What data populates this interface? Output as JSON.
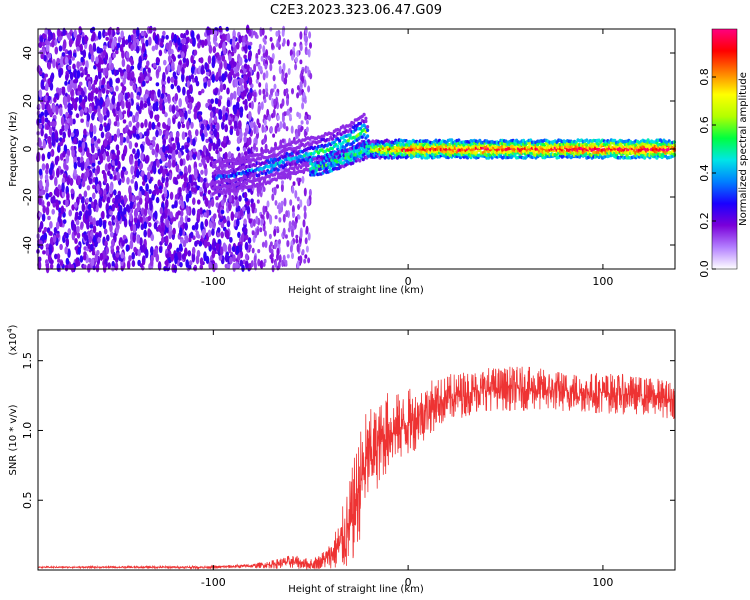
{
  "title": "C2E3.2023.323.06.47.G09",
  "chart_data": [
    {
      "type": "heatmap",
      "xlabel": "Height of straight line (km)",
      "ylabel": "Frequency (Hz)",
      "xlim": [
        -190,
        137
      ],
      "ylim": [
        -50,
        50
      ],
      "xticks": [
        -100,
        0,
        100
      ],
      "xtick_labels": [
        "-100",
        "0",
        "100"
      ],
      "yticks": [
        -40,
        -20,
        0,
        20,
        40
      ],
      "ytick_labels": [
        "-40",
        "-20",
        "0",
        "20",
        "40"
      ],
      "colorbar": {
        "label": "Normalized spectral amplitude",
        "range": [
          0,
          1
        ],
        "ticks": [
          0.0,
          0.2,
          0.4,
          0.6,
          0.8
        ],
        "tick_labels": [
          "0.0",
          "0.2",
          "0.4",
          "0.6",
          "0.8"
        ],
        "colors": [
          "#ffffff",
          "#b37fff",
          "#7a00d9",
          "#1a00ff",
          "#0080ff",
          "#00e6e6",
          "#00ff40",
          "#b3ff00",
          "#ffff00",
          "#ff8000",
          "#ff0000",
          "#ff0080"
        ]
      },
      "features": {
        "noise_region_x": [
          -190,
          -80
        ],
        "sparse_noise_x": [
          -80,
          -50
        ],
        "signal_path": [
          {
            "x": -100,
            "f": -12,
            "amp": 0.25
          },
          {
            "x": -90,
            "f": -11,
            "amp": 0.3
          },
          {
            "x": -80,
            "f": -9,
            "amp": 0.35
          },
          {
            "x": -70,
            "f": -7,
            "amp": 0.45
          },
          {
            "x": -60,
            "f": -4,
            "amp": 0.4
          },
          {
            "x": -50,
            "f": -2,
            "amp": 0.5
          },
          {
            "x": -40,
            "f": 0,
            "amp": 0.5
          },
          {
            "x": -30,
            "f": 4,
            "amp": 0.55
          },
          {
            "x": -22,
            "f": 8,
            "amp": 0.55
          },
          {
            "x": -20,
            "f": 0,
            "amp": 0.7
          },
          {
            "x": 0,
            "f": 0,
            "amp": 0.9
          },
          {
            "x": 137,
            "f": 0,
            "amp": 0.95
          }
        ],
        "secondary_path": [
          {
            "x": -50,
            "f": -8
          },
          {
            "x": -40,
            "f": -6
          },
          {
            "x": -30,
            "f": -3
          },
          {
            "x": -20,
            "f": 0
          }
        ]
      }
    },
    {
      "type": "line",
      "xlabel": "Height of straight line (km)",
      "ylabel": "SNR (10 * v/v)",
      "yscale_label": "(x10",
      "yscale_exp": "4",
      "yscale_close": ")",
      "xlim": [
        -190,
        137
      ],
      "ylim": [
        0,
        1.72
      ],
      "xticks": [
        -100,
        0,
        100
      ],
      "xtick_labels": [
        "-100",
        "0",
        "100"
      ],
      "yticks": [
        0.5,
        1.0,
        1.5
      ],
      "ytick_labels": [
        "0.5",
        "1.0",
        "1.5"
      ],
      "line_color": "#ee3333",
      "series": [
        {
          "x": [
            -190,
            -150,
            -100,
            -80,
            -70,
            -60,
            -50,
            -45,
            -40,
            -35,
            -30,
            -25,
            -22,
            -20,
            -15,
            -10,
            -5,
            0,
            5,
            10,
            15,
            20,
            25,
            30,
            40,
            50,
            60,
            80,
            100,
            120,
            137
          ],
          "y": [
            0.02,
            0.02,
            0.02,
            0.03,
            0.04,
            0.06,
            0.04,
            0.06,
            0.1,
            0.18,
            0.3,
            0.6,
            0.75,
            0.8,
            0.9,
            1.0,
            1.02,
            1.05,
            1.1,
            1.15,
            1.2,
            1.22,
            1.25,
            1.27,
            1.3,
            1.3,
            1.3,
            1.28,
            1.27,
            1.25,
            1.22
          ],
          "noise": [
            0.005,
            0.006,
            0.01,
            0.015,
            0.03,
            0.05,
            0.04,
            0.06,
            0.1,
            0.2,
            0.35,
            0.4,
            0.4,
            0.35,
            0.3,
            0.3,
            0.25,
            0.25,
            0.22,
            0.2,
            0.18,
            0.18,
            0.17,
            0.17,
            0.16,
            0.16,
            0.16,
            0.15,
            0.15,
            0.14,
            0.14
          ]
        }
      ]
    }
  ]
}
